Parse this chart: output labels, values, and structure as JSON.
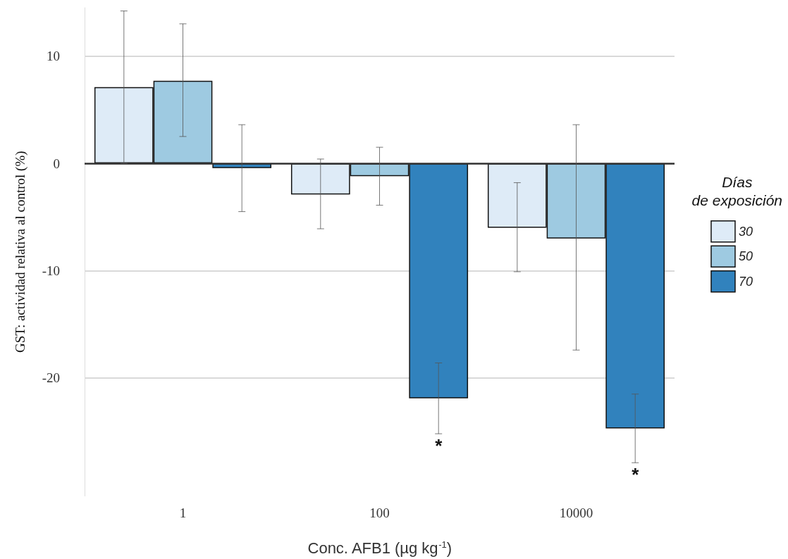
{
  "chart_data": {
    "type": "bar",
    "xlabel": "Conc. AFB1 (µg kg$^{-1}$)",
    "ylabel": "GST: actividad relativa al control (%)",
    "legend_title": "Días de exposición",
    "categories": [
      "1",
      "100",
      "10000"
    ],
    "series": [
      {
        "name": "30",
        "color": "#deebf7",
        "values": [
          7.1,
          -2.9,
          -6.0
        ],
        "errors": [
          [
            0.0,
            14.2
          ],
          [
            -6.1,
            0.4
          ],
          [
            -10.1,
            -1.8
          ]
        ]
      },
      {
        "name": "50",
        "color": "#9ecae1",
        "values": [
          7.7,
          -1.2,
          -7.0
        ],
        "errors": [
          [
            2.5,
            13.0
          ],
          [
            -3.9,
            1.5
          ],
          [
            -17.4,
            3.6
          ]
        ]
      },
      {
        "name": "70",
        "color": "#3182bd",
        "values": [
          -0.45,
          -21.9,
          -24.7
        ],
        "errors": [
          [
            -4.5,
            3.6
          ],
          [
            -25.2,
            -18.6
          ],
          [
            -27.9,
            -21.5
          ]
        ]
      }
    ],
    "ylim": [
      -31,
      14.5
    ],
    "yticks": [
      -20,
      -10,
      0,
      10
    ],
    "grid": "y",
    "legend": "right",
    "ref_lines": [
      {
        "axis": "y",
        "value": 0,
        "color": "#333333"
      }
    ],
    "annotations": [
      "*",
      "*"
    ]
  }
}
